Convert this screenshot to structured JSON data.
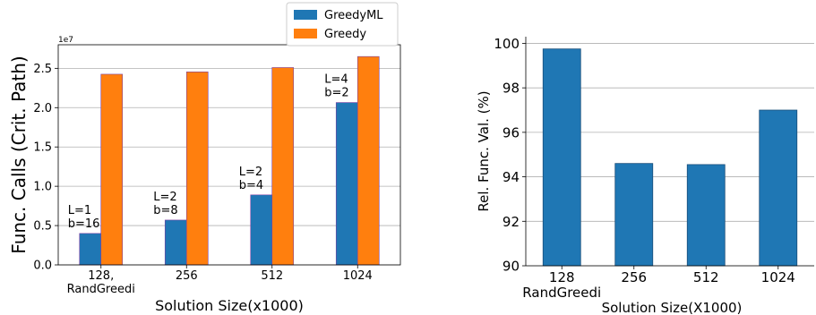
{
  "colors": {
    "greedyml": "#1f77b4",
    "greedy": "#ff7f0e",
    "edge": "#7b3fa3",
    "grid": "#b0b0b0"
  },
  "chart_data": [
    {
      "type": "bar",
      "categories": [
        "128,\nRandGreedi",
        "256",
        "512",
        "1024"
      ],
      "series": [
        {
          "name": "GreedyML",
          "values": [
            4000000,
            5700000,
            8900000,
            20650000
          ]
        },
        {
          "name": "Greedy",
          "values": [
            24250000,
            24550000,
            25100000,
            26500000
          ]
        }
      ],
      "annotations": [
        "L=1\nb=16",
        "L=2\nb=8",
        "L=2\nb=4",
        "L=4\nb=2"
      ],
      "ylabel": "Func. Calls (Crit. Path)",
      "xlabel": "Solution Size(x1000)",
      "offset_text": "1e7",
      "ylim": [
        0,
        28000000
      ],
      "yticks": [
        0,
        5000000,
        10000000,
        15000000,
        20000000,
        25000000
      ],
      "ytick_labels": [
        "0.0",
        "0.5",
        "1.0",
        "1.5",
        "2.0",
        "2.5"
      ],
      "grid": "y",
      "legend": "top"
    },
    {
      "type": "bar",
      "categories": [
        "128\nRandGreedi",
        "256",
        "512",
        "1024"
      ],
      "series": [
        {
          "values": [
            99.75,
            94.6,
            94.55,
            97.0
          ]
        }
      ],
      "ylabel": "Rel. Func. Val. (%)",
      "xlabel": "Solution Size(X1000)",
      "ylim": [
        90,
        100.3
      ],
      "yticks": [
        90,
        92,
        94,
        96,
        98,
        100
      ],
      "ytick_labels": [
        "90",
        "92",
        "94",
        "96",
        "98",
        "100"
      ],
      "grid": "y"
    }
  ]
}
